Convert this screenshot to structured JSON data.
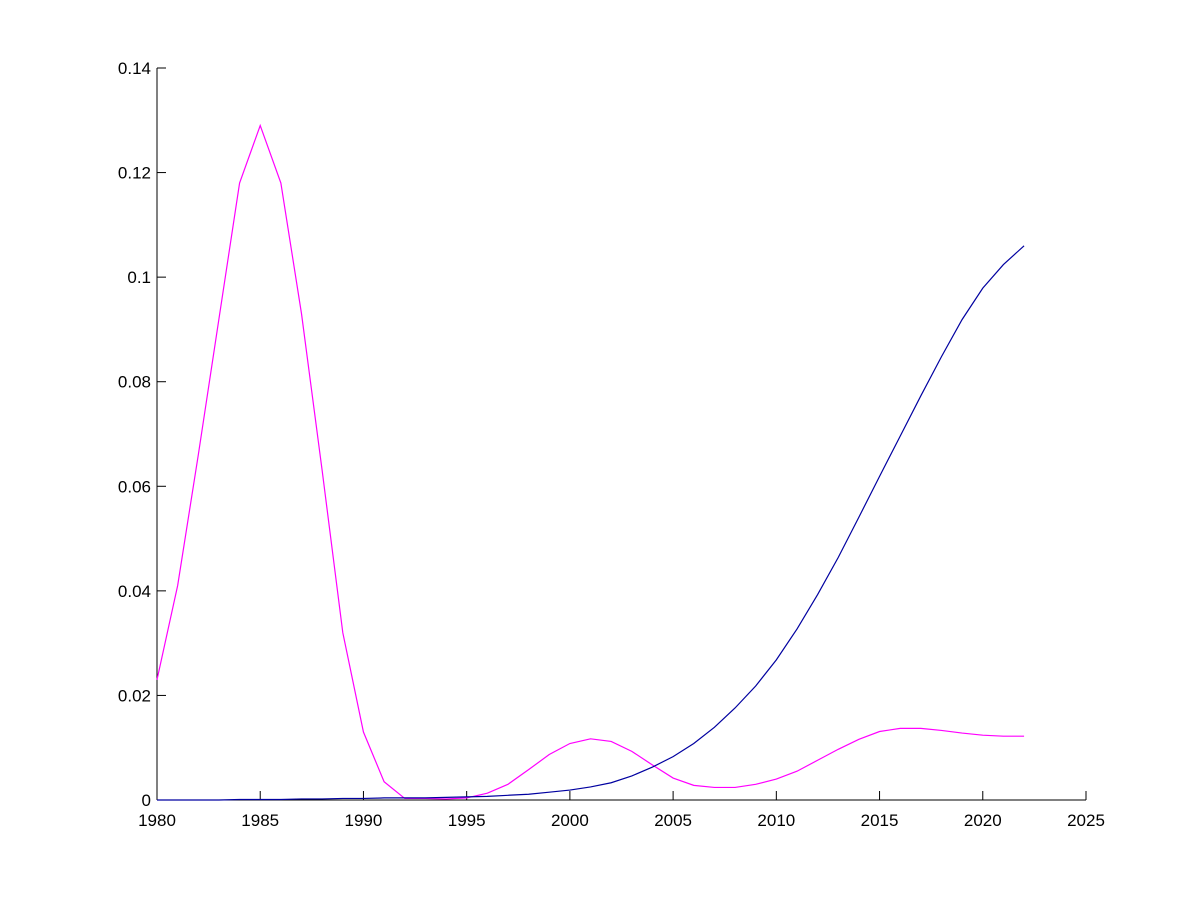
{
  "chart_data": {
    "type": "line",
    "x": [
      1980,
      1981,
      1982,
      1983,
      1984,
      1985,
      1986,
      1987,
      1988,
      1989,
      1990,
      1991,
      1992,
      1993,
      1994,
      1995,
      1996,
      1997,
      1998,
      1999,
      2000,
      2001,
      2002,
      2003,
      2004,
      2005,
      2006,
      2007,
      2008,
      2009,
      2010,
      2011,
      2012,
      2013,
      2014,
      2015,
      2016,
      2017,
      2018,
      2019,
      2020,
      2021,
      2022
    ],
    "series": [
      {
        "color": "#ff00ff",
        "values": [
          0.023,
          0.041,
          0.066,
          0.092,
          0.118,
          0.129,
          0.118,
          0.093,
          0.063,
          0.032,
          0.013,
          0.0035,
          0.0003,
          0.0003,
          0.0002,
          0.0004,
          0.0013,
          0.003,
          0.0058,
          0.0087,
          0.0108,
          0.0117,
          0.0112,
          0.0093,
          0.0067,
          0.0042,
          0.0028,
          0.0024,
          0.0024,
          0.003,
          0.004,
          0.0055,
          0.0076,
          0.0097,
          0.0116,
          0.0131,
          0.0137,
          0.0137,
          0.0133,
          0.0128,
          0.0124,
          0.0122,
          0.0122
        ]
      },
      {
        "color": "#0000a0",
        "values": [
          0,
          0,
          0,
          0,
          0.0001,
          0.0001,
          0.0001,
          0.0002,
          0.0002,
          0.0003,
          0.0003,
          0.0004,
          0.0004,
          0.0004,
          0.0005,
          0.0006,
          0.0007,
          0.0009,
          0.0011,
          0.0015,
          0.0019,
          0.0025,
          0.0033,
          0.0046,
          0.0063,
          0.0083,
          0.0108,
          0.0139,
          0.0176,
          0.0218,
          0.0268,
          0.0327,
          0.0393,
          0.0464,
          0.0541,
          0.0619,
          0.0696,
          0.0773,
          0.0848,
          0.0919,
          0.0979,
          0.1024,
          0.106
        ]
      }
    ],
    "xlim": [
      1980,
      2025
    ],
    "xticks": [
      1980,
      1985,
      1990,
      1995,
      2000,
      2005,
      2010,
      2015,
      2020,
      2025
    ],
    "ylim": [
      0,
      0.14
    ],
    "yticks": [
      0,
      0.02,
      0.04,
      0.06,
      0.08,
      0.1,
      0.12,
      0.14
    ],
    "grid": false
  }
}
